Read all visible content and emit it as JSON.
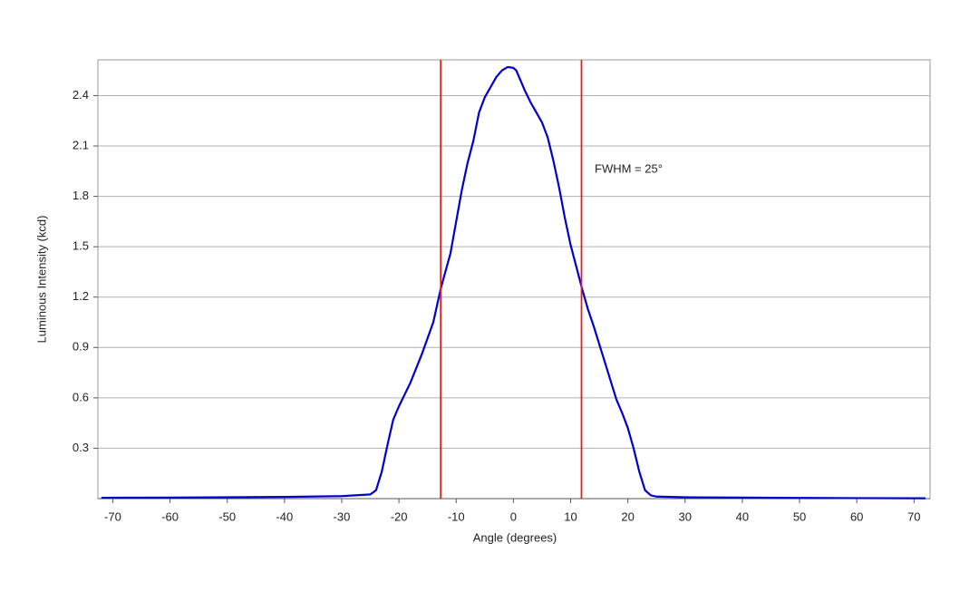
{
  "chart_data": {
    "type": "line",
    "x_label": "Angle (degrees)",
    "y_label": "Luminous Intensity (kcd)",
    "annotation": "FWHM = 25°",
    "x": [
      -72,
      -60,
      -40,
      -30,
      -25,
      -24,
      -23,
      -22,
      -21,
      -20,
      -18,
      -16,
      -14,
      -12.7,
      -11,
      -10,
      -9,
      -8,
      -7,
      -6,
      -5,
      -4,
      -3,
      -2,
      -1,
      0,
      0.5,
      1,
      2,
      3,
      4,
      5,
      6,
      7,
      8,
      9,
      10,
      11,
      12,
      13,
      14,
      15,
      16,
      17,
      18,
      19,
      20,
      21,
      22,
      23,
      24,
      25,
      30,
      40,
      50,
      60,
      72
    ],
    "series": [
      {
        "name": "Luminous Intensity",
        "color": "#0000cc",
        "values": [
          0.005,
          0.006,
          0.01,
          0.015,
          0.025,
          0.05,
          0.16,
          0.32,
          0.47,
          0.55,
          0.69,
          0.86,
          1.05,
          1.25,
          1.46,
          1.65,
          1.84,
          2.0,
          2.13,
          2.3,
          2.39,
          2.45,
          2.51,
          2.55,
          2.57,
          2.565,
          2.55,
          2.51,
          2.43,
          2.36,
          2.3,
          2.24,
          2.15,
          2.01,
          1.85,
          1.67,
          1.51,
          1.38,
          1.25,
          1.13,
          1.03,
          0.92,
          0.81,
          0.7,
          0.59,
          0.51,
          0.42,
          0.3,
          0.16,
          0.05,
          0.02,
          0.012,
          0.008,
          0.006,
          0.004,
          0.003,
          0.002
        ]
      }
    ],
    "vlines": [
      {
        "x": -12.7,
        "color": "#e02020"
      },
      {
        "x": 11.9,
        "color": "#e02020"
      }
    ],
    "xlim": [
      -72.6,
      72.8
    ],
    "xticks": [
      -70,
      -60,
      -50,
      -40,
      -30,
      -20,
      -10,
      0,
      10,
      20,
      30,
      40,
      50,
      60,
      70
    ],
    "ylim": [
      0,
      2.613
    ],
    "yticks": [
      0.3,
      0.6,
      0.9,
      1.2,
      1.5,
      1.8,
      2.1,
      2.4
    ],
    "grid": true
  }
}
